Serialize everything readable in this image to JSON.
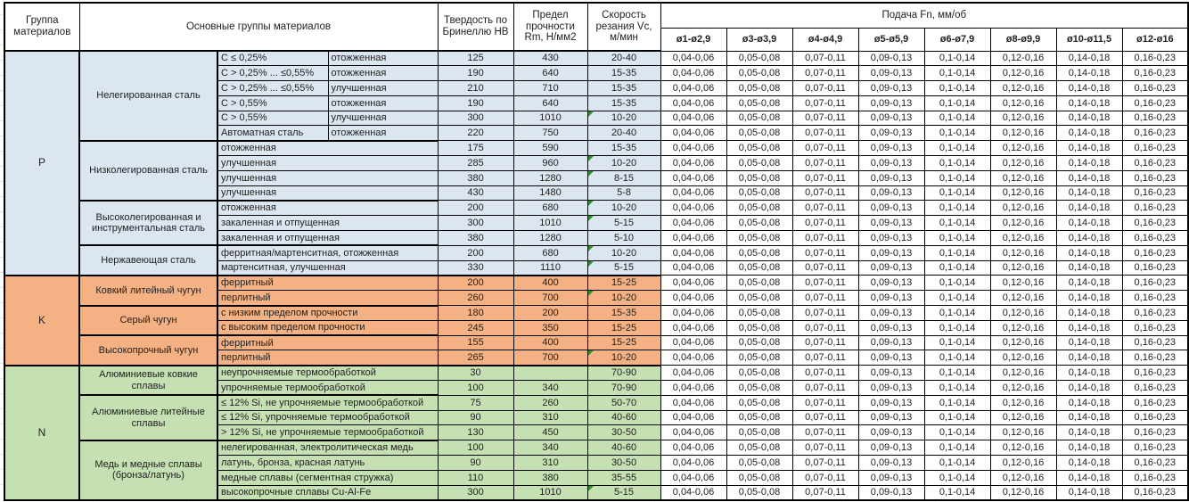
{
  "header": {
    "group_col": "Группа материалов",
    "main_groups_col": "Основные группы материалов",
    "hardness_col": "Твердость по Бринеллю HB",
    "strength_col": "Предел прочности Rm, Н/мм2",
    "speed_col": "Скорость резания Vc, м/мин",
    "feed_title": "Подача Fn, мм/об",
    "feed_columns": [
      "ø1-ø2,9",
      "ø3-ø3,9",
      "ø4-ø4,9",
      "ø5-ø5,9",
      "ø6-ø7,9",
      "ø8-ø9,9",
      "ø10-ø11,5",
      "ø12-ø16"
    ]
  },
  "feed_values": [
    "0,04-0,06",
    "0,05-0,08",
    "0,07-0,11",
    "0,09-0,13",
    "0,1-0,14",
    "0,12-0,16",
    "0,14-0,18",
    "0,16-0,23"
  ],
  "colors": {
    "group_p": "#dce6f1",
    "group_k": "#f4b183",
    "group_n": "#c5e0b3",
    "feed_gridline": "#a6a6a6",
    "flag_green": "#2f8f2f",
    "border": "#000000"
  },
  "groups": [
    {
      "code": "P",
      "subgroups": [
        {
          "name": "Нелегированная сталь",
          "rows": [
            {
              "carbon": "C ≤ 0,25%",
              "state": "отожженная",
              "hb": "125",
              "rm": "430",
              "vc": "20-40",
              "flag": false
            },
            {
              "carbon": "C > 0,25% ... ≤0,55%",
              "state": "отожженная",
              "hb": "190",
              "rm": "640",
              "vc": "15-35",
              "flag": false
            },
            {
              "carbon": "C > 0,25% ... ≤0,55%",
              "state": "улучшенная",
              "hb": "210",
              "rm": "710",
              "vc": "15-35",
              "flag": false
            },
            {
              "carbon": "C > 0,55%",
              "state": "отожженная",
              "hb": "190",
              "rm": "640",
              "vc": "15-35",
              "flag": false
            },
            {
              "carbon": "C > 0,55%",
              "state": "улучшенная",
              "hb": "300",
              "rm": "1010",
              "vc": "10-20",
              "flag": true
            },
            {
              "carbon": "Автоматная сталь",
              "state": "отожженная",
              "hb": "220",
              "rm": "750",
              "vc": "20-40",
              "flag": false
            }
          ]
        },
        {
          "name": "Низколегированная сталь",
          "rows": [
            {
              "desc": "отожженная",
              "hb": "175",
              "rm": "590",
              "vc": "15-35",
              "flag": false
            },
            {
              "desc": "улучшенная",
              "hb": "285",
              "rm": "960",
              "vc": "10-20",
              "flag": true
            },
            {
              "desc": "улучшенная",
              "hb": "380",
              "rm": "1280",
              "vc": "8-15",
              "flag": true
            },
            {
              "desc": "улучшенная",
              "hb": "430",
              "rm": "1480",
              "vc": "5-8",
              "flag": false
            }
          ]
        },
        {
          "name": "Высоколегированная и инструментальная сталь",
          "rows": [
            {
              "desc": "отожженная",
              "hb": "200",
              "rm": "680",
              "vc": "10-20",
              "flag": true
            },
            {
              "desc": "закаленная и отпущенная",
              "hb": "300",
              "rm": "1010",
              "vc": "5-15",
              "flag": true
            },
            {
              "desc": "закаленная и отпущенная",
              "hb": "380",
              "rm": "1280",
              "vc": "5-10",
              "flag": false
            }
          ]
        },
        {
          "name": "Нержавеющая сталь",
          "rows": [
            {
              "desc": "ферритная/мартенситная, отожженная",
              "hb": "200",
              "rm": "680",
              "vc": "10-20",
              "flag": true
            },
            {
              "desc": "мартенситная, улучшенная",
              "hb": "330",
              "rm": "1110",
              "vc": "5-15",
              "flag": true
            }
          ]
        }
      ]
    },
    {
      "code": "K",
      "subgroups": [
        {
          "name": "Ковкий литейный чугун",
          "rows": [
            {
              "desc": "ферритный",
              "hb": "200",
              "rm": "400",
              "vc": "15-25",
              "flag": false
            },
            {
              "desc": "перлитный",
              "hb": "260",
              "rm": "700",
              "vc": "10-20",
              "flag": true
            }
          ]
        },
        {
          "name": "Серый чугун",
          "rows": [
            {
              "desc": "с низким пределом прочности",
              "hb": "180",
              "rm": "200",
              "vc": "15-35",
              "flag": false
            },
            {
              "desc": "с высоким пределом прочности",
              "hb": "245",
              "rm": "350",
              "vc": "15-25",
              "flag": false
            }
          ]
        },
        {
          "name": "Высокопрочный чугун",
          "rows": [
            {
              "desc": "ферритный",
              "hb": "155",
              "rm": "400",
              "vc": "15-25",
              "flag": false
            },
            {
              "desc": "перлитный",
              "hb": "265",
              "rm": "700",
              "vc": "10-20",
              "flag": true
            }
          ]
        }
      ]
    },
    {
      "code": "N",
      "subgroups": [
        {
          "name": "Алюминиевые ковкие сплавы",
          "rows": [
            {
              "desc": "неупрочняемые термообработкой",
              "hb": "30",
              "rm": "",
              "vc": "70-90",
              "flag": false
            },
            {
              "desc": "упрочняемые термообработкой",
              "hb": "100",
              "rm": "340",
              "vc": "70-90",
              "flag": false
            }
          ]
        },
        {
          "name": "Алюминиевые литейные сплавы",
          "rows": [
            {
              "desc": "≤ 12% Si, не упрочняемые термообработкой",
              "hb": "75",
              "rm": "260",
              "vc": "50-70",
              "flag": false
            },
            {
              "desc": "≤ 12% Si, упрочняемые термообработкой",
              "hb": "90",
              "rm": "310",
              "vc": "40-60",
              "flag": false
            },
            {
              "desc": "> 12% Si, не упрочняемые термообработкой",
              "hb": "130",
              "rm": "450",
              "vc": "30-50",
              "flag": false
            }
          ]
        },
        {
          "name": "Медь и медные сплавы (бронза/латунь)",
          "rows": [
            {
              "desc": "нелегированная, электролитическая медь",
              "hb": "100",
              "rm": "340",
              "vc": "40-60",
              "flag": false
            },
            {
              "desc": "латунь, бронза, красная латунь",
              "hb": "90",
              "rm": "310",
              "vc": "30-50",
              "flag": false
            },
            {
              "desc": "медные сплавы (сегментная стружка)",
              "hb": "110",
              "rm": "380",
              "vc": "35-55",
              "flag": false
            },
            {
              "desc": "высокопрочные сплавы Cu-Al-Fe",
              "hb": "300",
              "rm": "1010",
              "vc": "5-15",
              "flag": true
            }
          ]
        }
      ]
    }
  ]
}
